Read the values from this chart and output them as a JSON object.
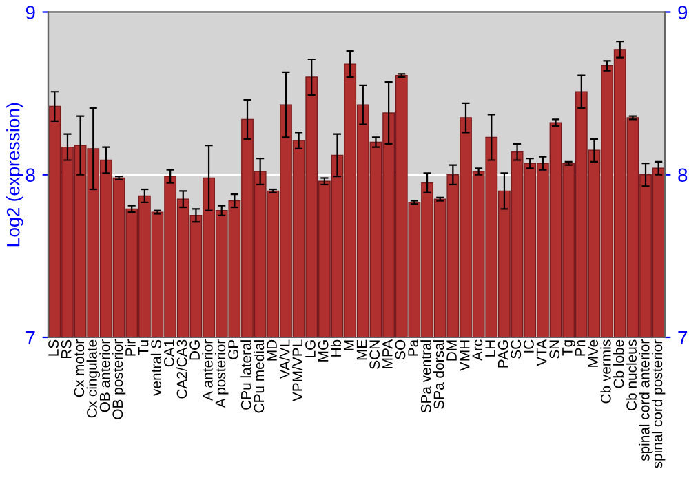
{
  "chart_data": {
    "type": "bar",
    "ylabel": "Log2 (expression)",
    "categories": [
      "LS",
      "RS",
      "Cx motor",
      "Cx cingulate",
      "OB anterior",
      "OB posterior",
      "Pir",
      "Tu",
      "ventral S",
      "CA1",
      "CA2/CA3",
      "DG",
      "A anterior",
      "A posterior",
      "GP",
      "CPu lateral",
      "CPu medial",
      "MD",
      "VA/VL",
      "VPM/VPL",
      "LG",
      "MG",
      "Hb",
      "M",
      "ME",
      "SCN",
      "MPA",
      "SO",
      "Pa",
      "SPa ventral",
      "SPa dorsal",
      "DM",
      "VMH",
      "Arc",
      "LH",
      "PAG",
      "SC",
      "IC",
      "VTA",
      "SN",
      "Tg",
      "Pn",
      "MVe",
      "Cb vermis",
      "Cb lobe",
      "Cb nucleus",
      "spinal cord anterior",
      "spinal cord posterior"
    ],
    "values": [
      8.42,
      8.17,
      8.18,
      8.16,
      8.09,
      7.98,
      7.79,
      7.87,
      7.77,
      7.99,
      7.85,
      7.75,
      7.98,
      7.78,
      7.84,
      8.34,
      8.02,
      7.9,
      8.43,
      8.21,
      8.6,
      7.96,
      8.12,
      8.68,
      8.43,
      8.2,
      8.38,
      8.61,
      7.83,
      7.95,
      7.85,
      8.0,
      8.35,
      8.02,
      8.23,
      7.9,
      8.14,
      8.07,
      8.07,
      8.32,
      8.07,
      8.51,
      8.15,
      8.67,
      8.77,
      8.35,
      8.0,
      8.04
    ],
    "errors": [
      0.09,
      0.08,
      0.18,
      0.25,
      0.08,
      0.01,
      0.02,
      0.04,
      0.01,
      0.04,
      0.05,
      0.04,
      0.2,
      0.03,
      0.04,
      0.12,
      0.08,
      0.01,
      0.2,
      0.05,
      0.11,
      0.02,
      0.13,
      0.08,
      0.12,
      0.03,
      0.19,
      0.01,
      0.01,
      0.06,
      0.01,
      0.06,
      0.09,
      0.02,
      0.14,
      0.11,
      0.05,
      0.03,
      0.04,
      0.02,
      0.01,
      0.1,
      0.07,
      0.03,
      0.05,
      0.01,
      0.07,
      0.04
    ],
    "color": "#b03030",
    "ylim": [
      7,
      9
    ],
    "yticks": [
      7,
      8,
      9
    ],
    "y2lim": [
      7,
      9
    ],
    "y2ticks": [
      7,
      8,
      9
    ],
    "grid": "y"
  }
}
